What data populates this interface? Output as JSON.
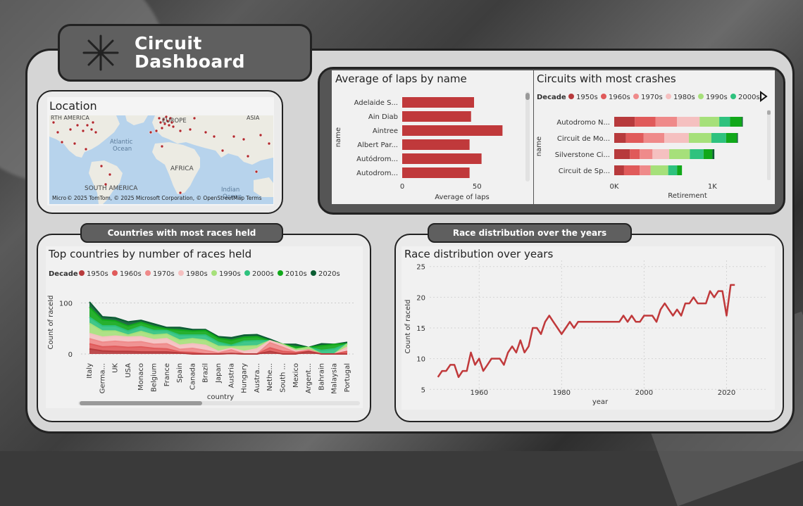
{
  "dashboard": {
    "title_line1": "Circuit",
    "title_line2": "Dashboard",
    "colors": {
      "accent": "#c0393b",
      "panel": "#d5d5d5",
      "card": "#ebebeb",
      "tag": "#5f5f5f"
    }
  },
  "location": {
    "title": "Location",
    "labels": {
      "north_america": "RTH AMERICA",
      "europe": "EUROPE",
      "asia": "ASIA",
      "atlantic": "Atlantic",
      "ocean": "Ocean",
      "africa": "AFRICA",
      "south_america": "SOUTH AMERICA",
      "indian": "Indian",
      "indian_ocean": "Ocean"
    },
    "credit": "© 2025 TomTom, © 2025 Microsoft Corporation, © OpenStreetMap Terms",
    "provider": "Micro"
  },
  "laps_chart": {
    "title": "Average of laps by name",
    "chart_data": {
      "type": "bar",
      "orientation": "horizontal",
      "categories": [
        "Adelaide S...",
        "Ain Diab",
        "Aintree",
        "Albert Par...",
        "Autódrom...",
        "Autodrom..."
      ],
      "values": [
        48,
        46,
        67,
        45,
        53,
        45
      ],
      "xlabel": "Average of laps",
      "ylabel": "name",
      "xticks": [
        "0",
        "50"
      ],
      "xlim": [
        0,
        80
      ],
      "color": "#c0393b"
    }
  },
  "crashes_chart": {
    "title": "Circuits with most crashes",
    "legend_title": "Decade",
    "chart_data": {
      "type": "bar",
      "orientation": "horizontal",
      "stacked": true,
      "categories": [
        "Autodromo N...",
        "Circuit de Mo...",
        "Silverstone Ci...",
        "Circuit de Sp..."
      ],
      "series": [
        {
          "name": "1950s",
          "color": "#b73a3c",
          "values": [
            210,
            120,
            160,
            100
          ]
        },
        {
          "name": "1960s",
          "color": "#e05a5a",
          "values": [
            210,
            180,
            100,
            160
          ]
        },
        {
          "name": "1970s",
          "color": "#ef8a8a",
          "values": [
            220,
            210,
            130,
            110
          ]
        },
        {
          "name": "1980s",
          "color": "#f5c0c0",
          "values": [
            230,
            250,
            170,
            0
          ]
        },
        {
          "name": "1990s",
          "color": "#a6e07a",
          "values": [
            200,
            230,
            210,
            180
          ]
        },
        {
          "name": "2000s",
          "color": "#2ec27e",
          "values": [
            110,
            150,
            140,
            90
          ]
        },
        {
          "name": "2010s",
          "color": "#11a81a",
          "values": [
            120,
            110,
            90,
            50
          ]
        },
        {
          "name": "2020s",
          "color": "#0a5c32",
          "values": [
            10,
            10,
            20,
            0
          ]
        }
      ],
      "xlabel": "Retirement",
      "ylabel": "name",
      "xticks": [
        "0K",
        "1K"
      ],
      "xlim": [
        0,
        1550
      ]
    },
    "legend_visible": [
      "1950s",
      "1960s",
      "1970s",
      "1980s",
      "1990s",
      "2000s"
    ]
  },
  "countries_tag": "Countries with most races held",
  "countries_chart": {
    "title": "Top countries by number of races held",
    "legend_title": "Decade",
    "chart_data": {
      "type": "area",
      "stacked": true,
      "categories": [
        "Italy",
        "Germa...",
        "UK",
        "USA",
        "Monaco",
        "Belgium",
        "France",
        "Spain",
        "Canada",
        "Brazil",
        "Japan",
        "Austria",
        "Hungary",
        "Austra...",
        "Nethe...",
        "South ...",
        "Mexico",
        "Argent...",
        "Bahrain",
        "Malaysia",
        "Portugal"
      ],
      "series": [
        {
          "name": "1950s",
          "color": "#b73a3c",
          "values": [
            10,
            6,
            5,
            5,
            4,
            4,
            4,
            2,
            0,
            0,
            0,
            1,
            0,
            0,
            5,
            0,
            0,
            5,
            0,
            0,
            0
          ]
        },
        {
          "name": "1960s",
          "color": "#e05a5a",
          "values": [
            10,
            8,
            10,
            8,
            10,
            7,
            6,
            2,
            3,
            0,
            0,
            0,
            0,
            0,
            7,
            5,
            3,
            0,
            0,
            0,
            5
          ]
        },
        {
          "name": "1970s",
          "color": "#ef8a8a",
          "values": [
            10,
            9,
            10,
            10,
            10,
            8,
            10,
            5,
            8,
            7,
            2,
            7,
            0,
            0,
            10,
            8,
            0,
            3,
            0,
            0,
            0
          ]
        },
        {
          "name": "1980s",
          "color": "#f5c0c0",
          "values": [
            10,
            10,
            10,
            10,
            10,
            9,
            10,
            8,
            9,
            10,
            3,
            3,
            5,
            10,
            4,
            4,
            3,
            0,
            0,
            0,
            8
          ]
        },
        {
          "name": "1990s",
          "color": "#a6e07a",
          "values": [
            20,
            12,
            10,
            4,
            10,
            9,
            9,
            10,
            10,
            10,
            10,
            3,
            10,
            6,
            0,
            2,
            3,
            5,
            0,
            0,
            7
          ]
        },
        {
          "name": "2000s",
          "color": "#2ec27e",
          "values": [
            12,
            10,
            10,
            8,
            10,
            9,
            7,
            10,
            7,
            10,
            8,
            3,
            10,
            10,
            0,
            0,
            0,
            0,
            7,
            10,
            0
          ]
        },
        {
          "name": "2010s",
          "color": "#11a81a",
          "values": [
            20,
            12,
            10,
            10,
            8,
            8,
            3,
            10,
            8,
            9,
            8,
            10,
            8,
            8,
            0,
            0,
            5,
            0,
            9,
            9,
            0
          ]
        },
        {
          "name": "2020s",
          "color": "#0a5c32",
          "values": [
            10,
            6,
            6,
            8,
            4,
            5,
            3,
            5,
            3,
            2,
            3,
            5,
            4,
            4,
            3,
            0,
            5,
            0,
            4,
            0,
            3
          ]
        }
      ],
      "xlabel": "country",
      "ylabel": "Count of raceId",
      "yticks": [
        "100",
        "0"
      ],
      "ylim": [
        0,
        120
      ]
    },
    "legend": [
      "1950s",
      "1960s",
      "1970s",
      "1980s",
      "1990s",
      "2000s",
      "2010s",
      "2020s"
    ]
  },
  "race_tag": "Race distribution over the years",
  "race_chart": {
    "title": "Race distribution over years",
    "chart_data": {
      "type": "line",
      "x": [
        1950,
        1951,
        1952,
        1953,
        1954,
        1955,
        1956,
        1957,
        1958,
        1959,
        1960,
        1961,
        1962,
        1963,
        1964,
        1965,
        1966,
        1967,
        1968,
        1969,
        1970,
        1971,
        1972,
        1973,
        1974,
        1975,
        1976,
        1977,
        1978,
        1979,
        1980,
        1981,
        1982,
        1983,
        1984,
        1985,
        1986,
        1987,
        1988,
        1989,
        1990,
        1991,
        1992,
        1993,
        1994,
        1995,
        1996,
        1997,
        1998,
        1999,
        2000,
        2001,
        2002,
        2003,
        2004,
        2005,
        2006,
        2007,
        2008,
        2009,
        2010,
        2011,
        2012,
        2013,
        2014,
        2015,
        2016,
        2017,
        2018,
        2019,
        2020,
        2021,
        2022
      ],
      "y": [
        7,
        8,
        8,
        9,
        9,
        7,
        8,
        8,
        11,
        9,
        10,
        8,
        9,
        10,
        10,
        10,
        9,
        11,
        12,
        11,
        13,
        11,
        12,
        15,
        15,
        14,
        16,
        17,
        16,
        15,
        14,
        15,
        16,
        15,
        16,
        16,
        16,
        16,
        16,
        16,
        16,
        16,
        16,
        16,
        16,
        17,
        16,
        17,
        16,
        16,
        17,
        17,
        17,
        16,
        18,
        19,
        18,
        17,
        18,
        17,
        19,
        19,
        20,
        19,
        19,
        19,
        21,
        20,
        21,
        21,
        17,
        22,
        22
      ],
      "xlabel": "year",
      "ylabel": "Count of raceId",
      "xticks": [
        1960,
        1980,
        2000,
        2020
      ],
      "yticks": [
        5,
        10,
        15,
        20,
        25
      ],
      "xlim": [
        1948,
        2030
      ],
      "ylim": [
        4,
        26
      ],
      "color": "#c0393b"
    }
  }
}
